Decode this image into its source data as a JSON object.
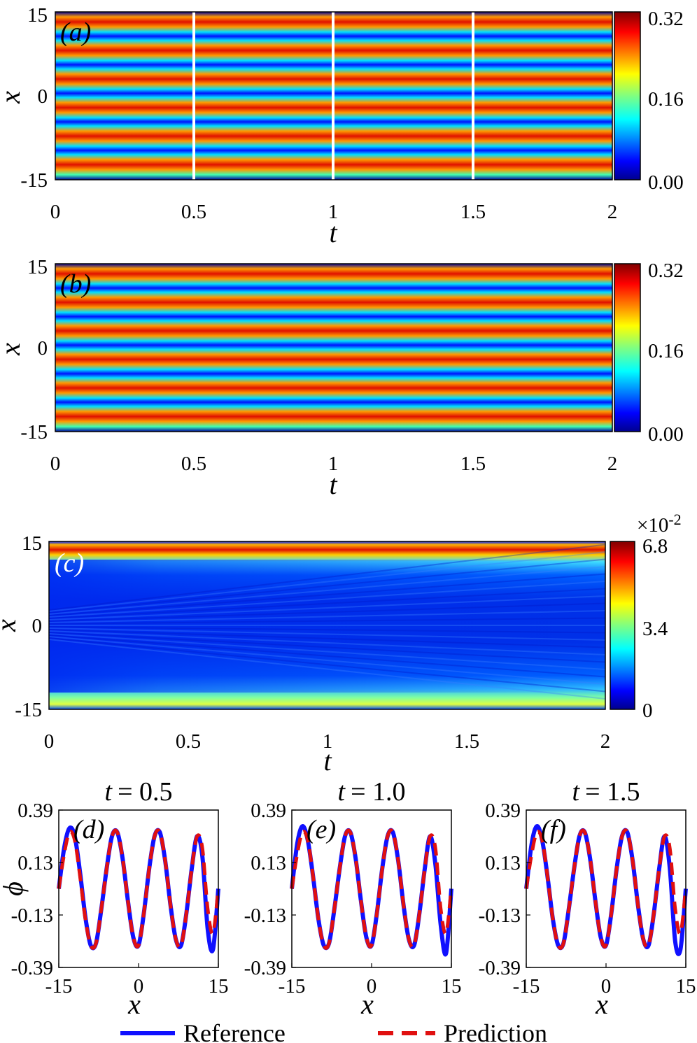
{
  "colors": {
    "reference_line": "#1010ff",
    "prediction_line": "#e01010",
    "snapshot_marker": "#ffffff",
    "colormap": [
      "#00008f",
      "#0000ff",
      "#0080ff",
      "#00ffff",
      "#80ff80",
      "#ffff00",
      "#ff8000",
      "#ff0000",
      "#800000"
    ]
  },
  "chart_data": [
    {
      "id": "a",
      "type": "heatmap",
      "panel_label": "(a)",
      "xlabel": "t",
      "ylabel": "x",
      "xlim": [
        0,
        2
      ],
      "ylim": [
        -15,
        15
      ],
      "x_ticks": [
        "0",
        "0.5",
        "1",
        "1.5",
        "2"
      ],
      "y_ticks": [
        "-15",
        "0",
        "15"
      ],
      "colorbar": {
        "range": [
          0,
          0.32
        ],
        "ticks": [
          "0.00",
          "0.16",
          "0.32"
        ]
      },
      "vertical_markers_t": [
        0.5,
        1.0,
        1.5
      ],
      "description_values": {
        "stripes_across_x": 6
      }
    },
    {
      "id": "b",
      "type": "heatmap",
      "panel_label": "(b)",
      "xlabel": "t",
      "ylabel": "x",
      "xlim": [
        0,
        2
      ],
      "ylim": [
        -15,
        15
      ],
      "x_ticks": [
        "0",
        "0.5",
        "1",
        "1.5",
        "2"
      ],
      "y_ticks": [
        "-15",
        "0",
        "15"
      ],
      "colorbar": {
        "range": [
          0,
          0.32
        ],
        "ticks": [
          "0.00",
          "0.16",
          "0.32"
        ]
      }
    },
    {
      "id": "c",
      "type": "heatmap",
      "panel_label": "(c)",
      "xlabel": "t",
      "ylabel": "x",
      "xlim": [
        0,
        2
      ],
      "ylim": [
        -15,
        15
      ],
      "x_ticks": [
        "0",
        "0.5",
        "1",
        "1.5",
        "2"
      ],
      "y_ticks": [
        "-15",
        "0",
        "15"
      ],
      "colorbar": {
        "range": [
          0,
          6.8
        ],
        "ticks": [
          "0",
          "3.4",
          "6.8"
        ],
        "multiplier_base": "×10",
        "multiplier_exp": "-2"
      }
    },
    {
      "id": "d",
      "type": "line",
      "panel_label": "(d)",
      "title_lhs": "t",
      "title_rhs": "= 0.5",
      "xlabel": "x",
      "ylabel": "ϕ",
      "xlim": [
        -15,
        15
      ],
      "ylim": [
        -0.39,
        0.39
      ],
      "x_ticks": [
        "-15",
        "0",
        "15"
      ],
      "y_ticks": [
        "-0.39",
        "-0.13",
        "0.13",
        "0.39"
      ],
      "series": [
        {
          "name": "Reference",
          "x": [
            -15,
            -14,
            -13,
            -12,
            -11,
            -10,
            -9,
            -8,
            -7,
            -6,
            -5,
            -4,
            -3,
            -2,
            -1,
            0,
            1,
            2,
            3,
            4,
            5,
            6,
            7,
            8,
            9,
            10,
            11,
            12,
            13,
            14,
            15
          ],
          "y": [
            0.0,
            0.2,
            0.3,
            0.26,
            0.08,
            -0.14,
            -0.28,
            -0.27,
            -0.1,
            0.1,
            0.26,
            0.28,
            0.15,
            -0.06,
            -0.24,
            -0.28,
            -0.12,
            0.1,
            0.26,
            0.28,
            0.14,
            -0.08,
            -0.25,
            -0.28,
            -0.12,
            0.1,
            0.26,
            0.16,
            -0.2,
            -0.3,
            0.0
          ]
        },
        {
          "name": "Prediction",
          "x": [
            -15,
            -14,
            -13,
            -12,
            -11,
            -10,
            -9,
            -8,
            -7,
            -6,
            -5,
            -4,
            -3,
            -2,
            -1,
            0,
            1,
            2,
            3,
            4,
            5,
            6,
            7,
            8,
            9,
            10,
            11,
            12,
            13,
            14,
            15
          ],
          "y": [
            0.0,
            0.17,
            0.28,
            0.24,
            0.06,
            -0.15,
            -0.28,
            -0.27,
            -0.1,
            0.1,
            0.26,
            0.28,
            0.15,
            -0.06,
            -0.24,
            -0.28,
            -0.12,
            0.1,
            0.26,
            0.28,
            0.14,
            -0.08,
            -0.25,
            -0.28,
            -0.12,
            0.1,
            0.26,
            0.2,
            -0.1,
            -0.22,
            0.0
          ]
        }
      ]
    },
    {
      "id": "e",
      "type": "line",
      "panel_label": "(e)",
      "title_lhs": "t",
      "title_rhs": "= 1.0",
      "xlabel": "x",
      "ylabel": "",
      "xlim": [
        -15,
        15
      ],
      "ylim": [
        -0.39,
        0.39
      ],
      "x_ticks": [
        "-15",
        "0",
        "15"
      ],
      "y_ticks": [
        "-0.39",
        "-0.13",
        "0.13",
        "0.39"
      ],
      "series": [
        {
          "name": "Reference",
          "x": [
            -15,
            -14,
            -13,
            -12,
            -11,
            -10,
            -9,
            -8,
            -7,
            -6,
            -5,
            -4,
            -3,
            -2,
            -1,
            0,
            1,
            2,
            3,
            4,
            5,
            6,
            7,
            8,
            9,
            10,
            11,
            12,
            13,
            14,
            15
          ],
          "y": [
            0.0,
            0.22,
            0.31,
            0.24,
            0.06,
            -0.15,
            -0.28,
            -0.27,
            -0.1,
            0.1,
            0.26,
            0.28,
            0.15,
            -0.06,
            -0.24,
            -0.28,
            -0.12,
            0.1,
            0.26,
            0.28,
            0.14,
            -0.08,
            -0.25,
            -0.28,
            -0.12,
            0.1,
            0.26,
            0.12,
            -0.18,
            -0.32,
            0.0
          ]
        },
        {
          "name": "Prediction",
          "x": [
            -15,
            -14,
            -13,
            -12,
            -11,
            -10,
            -9,
            -8,
            -7,
            -6,
            -5,
            -4,
            -3,
            -2,
            -1,
            0,
            1,
            2,
            3,
            4,
            5,
            6,
            7,
            8,
            9,
            10,
            11,
            12,
            13,
            14,
            15
          ],
          "y": [
            0.0,
            0.17,
            0.28,
            0.24,
            0.06,
            -0.15,
            -0.28,
            -0.27,
            -0.1,
            0.1,
            0.26,
            0.28,
            0.15,
            -0.06,
            -0.24,
            -0.28,
            -0.12,
            0.1,
            0.26,
            0.28,
            0.14,
            -0.08,
            -0.25,
            -0.28,
            -0.12,
            0.1,
            0.26,
            0.2,
            -0.1,
            -0.22,
            0.0
          ]
        }
      ]
    },
    {
      "id": "f",
      "type": "line",
      "panel_label": "(f)",
      "title_lhs": "t",
      "title_rhs": "= 1.5",
      "xlabel": "x",
      "ylabel": "",
      "xlim": [
        -15,
        15
      ],
      "ylim": [
        -0.39,
        0.39
      ],
      "x_ticks": [
        "-15",
        "0",
        "15"
      ],
      "y_ticks": [
        "-0.39",
        "-0.13",
        "0.13",
        "0.39"
      ],
      "series": [
        {
          "name": "Reference",
          "x": [
            -15,
            -14,
            -13,
            -12,
            -11,
            -10,
            -9,
            -8,
            -7,
            -6,
            -5,
            -4,
            -3,
            -2,
            -1,
            0,
            1,
            2,
            3,
            4,
            5,
            6,
            7,
            8,
            9,
            10,
            11,
            12,
            13,
            14,
            15
          ],
          "y": [
            0.0,
            0.22,
            0.31,
            0.24,
            0.06,
            -0.15,
            -0.28,
            -0.27,
            -0.1,
            0.1,
            0.26,
            0.28,
            0.15,
            -0.06,
            -0.24,
            -0.28,
            -0.12,
            0.1,
            0.26,
            0.28,
            0.14,
            -0.08,
            -0.25,
            -0.28,
            -0.12,
            0.1,
            0.26,
            0.1,
            -0.26,
            -0.3,
            0.0
          ]
        },
        {
          "name": "Prediction",
          "x": [
            -15,
            -14,
            -13,
            -12,
            -11,
            -10,
            -9,
            -8,
            -7,
            -6,
            -5,
            -4,
            -3,
            -2,
            -1,
            0,
            1,
            2,
            3,
            4,
            5,
            6,
            7,
            8,
            9,
            10,
            11,
            12,
            13,
            14,
            15
          ],
          "y": [
            0.0,
            0.17,
            0.28,
            0.24,
            0.06,
            -0.15,
            -0.28,
            -0.27,
            -0.1,
            0.1,
            0.26,
            0.28,
            0.15,
            -0.06,
            -0.24,
            -0.28,
            -0.12,
            0.1,
            0.26,
            0.28,
            0.14,
            -0.08,
            -0.25,
            -0.28,
            -0.12,
            0.1,
            0.26,
            0.2,
            -0.1,
            -0.22,
            0.0
          ]
        }
      ]
    }
  ],
  "legend": {
    "placement": "bottom-center",
    "items": [
      {
        "label": "Reference",
        "style": "solid"
      },
      {
        "label": "Prediction",
        "style": "dashed"
      }
    ]
  }
}
